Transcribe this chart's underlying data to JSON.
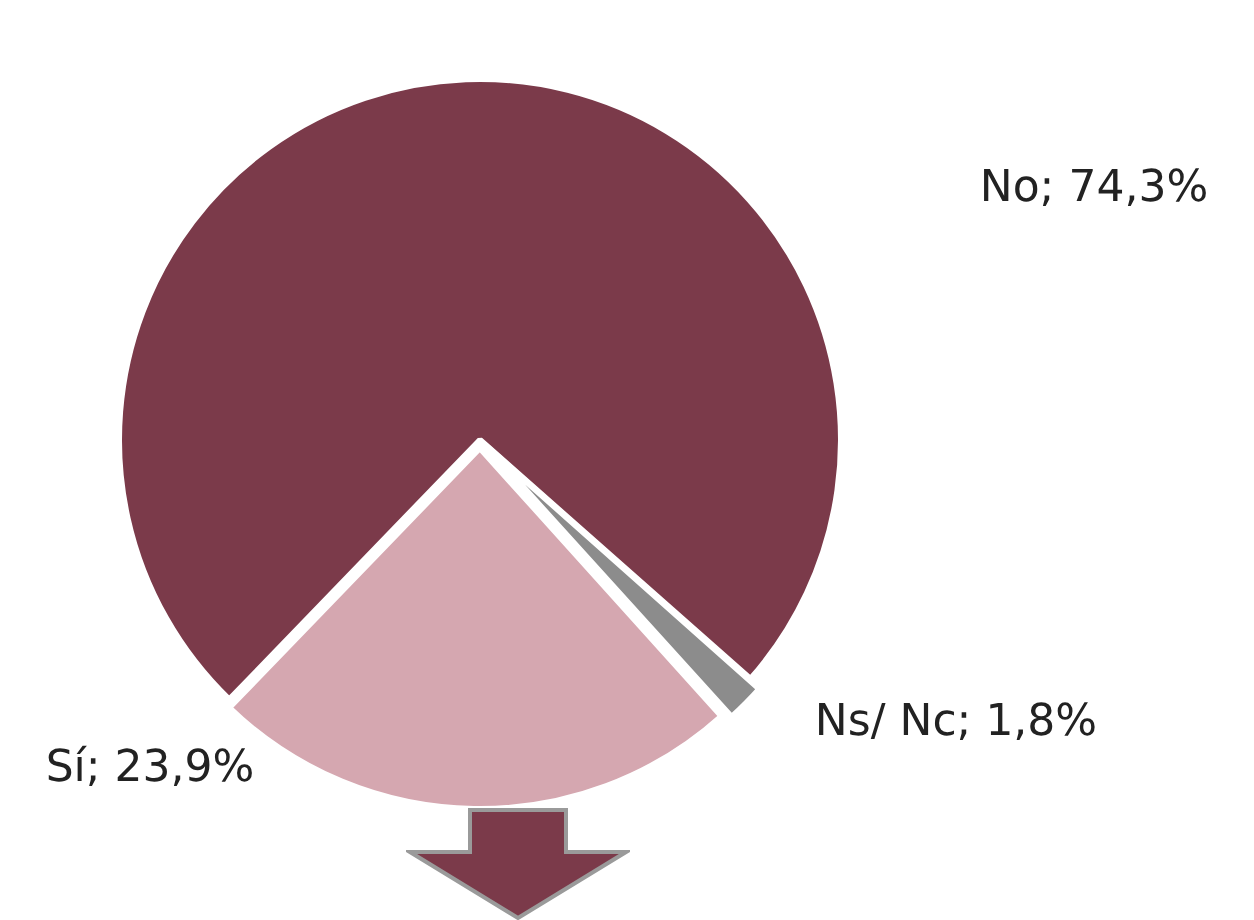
{
  "chart_data": {
    "type": "pie",
    "categories": [
      "No",
      "Ns/ Nc",
      "Sí"
    ],
    "values": [
      74.3,
      1.8,
      23.9
    ],
    "colors": [
      "#7b3a4a",
      "#8c8c8c",
      "#d5a7b0"
    ],
    "value_labels": [
      "74,3%",
      "1,8%",
      "23,9%"
    ],
    "legend": false
  }
}
